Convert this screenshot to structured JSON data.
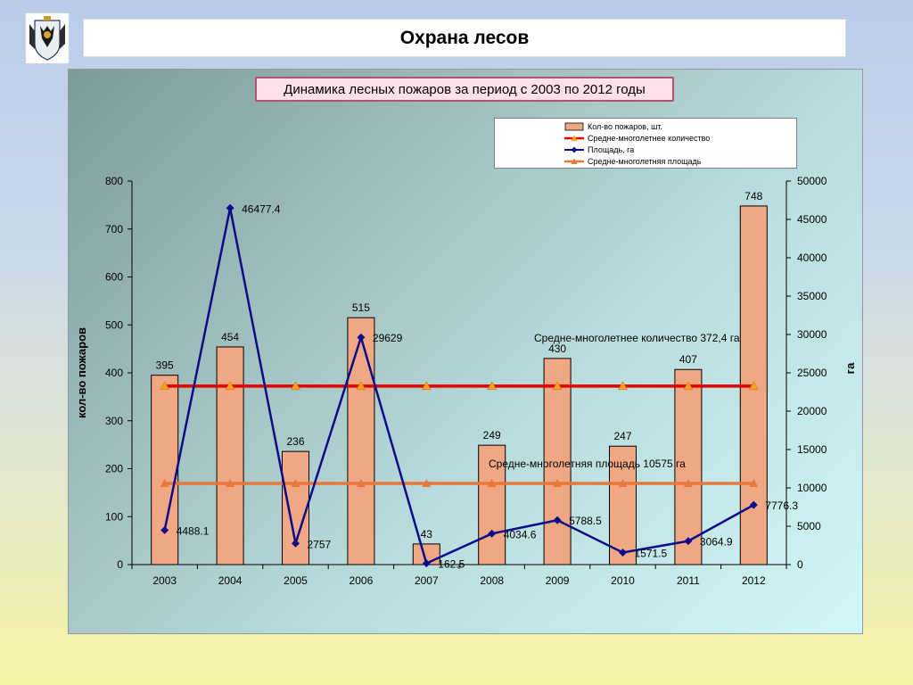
{
  "slide": {
    "title": "Охрана лесов"
  },
  "logo": {
    "icon": "coat-of-arms-icon"
  },
  "chart_data": {
    "type": "bar",
    "title": "Динамика лесных пожаров за период с 2003 по 2012 годы",
    "categories": [
      "2003",
      "2004",
      "2005",
      "2006",
      "2007",
      "2008",
      "2009",
      "2010",
      "2011",
      "2012"
    ],
    "y_left": {
      "label": "кол-во пожаров",
      "lim": [
        0,
        800
      ],
      "ticks": [
        0,
        100,
        200,
        300,
        400,
        500,
        600,
        700,
        800
      ]
    },
    "y_right": {
      "label": "га",
      "lim": [
        0,
        50000
      ],
      "ticks": [
        0,
        5000,
        10000,
        15000,
        20000,
        25000,
        30000,
        35000,
        40000,
        45000,
        50000
      ]
    },
    "series": [
      {
        "name": "Кол-во пожаров, шт.",
        "type": "bar",
        "axis": "left",
        "color": "#f0a884",
        "values": [
          395,
          454,
          236,
          515,
          43,
          249,
          430,
          247,
          407,
          748
        ],
        "labels": [
          "395",
          "454",
          "236",
          "515",
          "43",
          "249",
          "430",
          "247",
          "407",
          "748"
        ]
      },
      {
        "name": "Средне-многолетнее количество",
        "type": "line",
        "axis": "left",
        "color": "#e00000",
        "marker_color": "#f2a21b",
        "values": [
          372.4,
          372.4,
          372.4,
          372.4,
          372.4,
          372.4,
          372.4,
          372.4,
          372.4,
          372.4
        ]
      },
      {
        "name": "Площадь, га",
        "type": "line",
        "axis": "right",
        "color": "#0c0c8a",
        "values": [
          4488.1,
          46477.4,
          2757,
          29629,
          162.5,
          4034.6,
          5788.5,
          1571.5,
          3064.9,
          7776.3
        ],
        "labels": [
          "4488.1",
          "46477.4",
          "2757",
          "29629",
          "162.5",
          "4034.6",
          "5788.5",
          "1571.5",
          "3064.9",
          "7776.3"
        ]
      },
      {
        "name": "Средне-многолетняя площадь",
        "type": "line",
        "axis": "right",
        "color": "#e8773a",
        "values": [
          10575,
          10575,
          10575,
          10575,
          10575,
          10575,
          10575,
          10575,
          10575,
          10575
        ]
      }
    ],
    "annotations": [
      "Средне-многолетнее количество 372,4 га",
      "Средне-многолетняя площадь 10575 га"
    ],
    "legend_position": "top-right",
    "grid": false
  }
}
